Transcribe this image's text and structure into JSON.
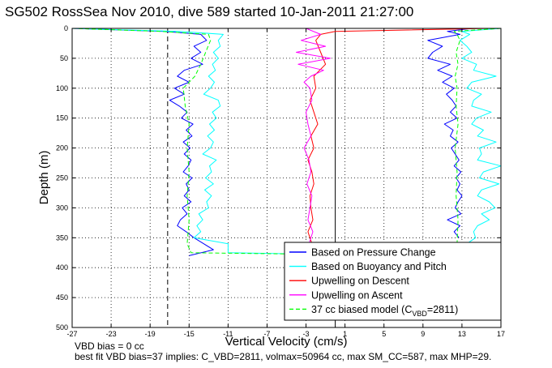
{
  "chart_data": {
    "type": "line",
    "title": "SG502 RossSea Nov 2010, dive 589 started 10-Jan-2011 21:27:00",
    "xlabel": "Vertical Velocity (cm/s)",
    "ylabel": "Depth (m)",
    "xlim": [
      -27,
      17
    ],
    "ylim": [
      500,
      0
    ],
    "y_reversed": true,
    "grid": true,
    "x_ticks": [
      "-27",
      "-23",
      "-19",
      "-15",
      "-11",
      "-7",
      "-3",
      "1",
      "5",
      "9",
      "13",
      "17"
    ],
    "y_ticks": [
      "0",
      "50",
      "100",
      "150",
      "200",
      "250",
      "300",
      "350",
      "400",
      "450",
      "500"
    ],
    "legend_position": "bottom-right",
    "legend": [
      {
        "label": "Based on Pressure Change",
        "color": "#0000ff",
        "dash": false
      },
      {
        "label": "Based on Buoyancy and Pitch",
        "color": "#00ffff",
        "dash": false
      },
      {
        "label": "Upwelling on Descent",
        "color": "#ff0000",
        "dash": false
      },
      {
        "label": "Upwelling on Ascent",
        "color": "#ff00ff",
        "dash": false
      },
      {
        "label": "37 cc biased model (C",
        "sub": "VBD",
        "suffix": "=2811)",
        "color": "#00ff00",
        "dash": true
      }
    ],
    "reference_lines": [
      {
        "x": -17.2,
        "style": "dashed",
        "color": "#000000"
      },
      {
        "x": 0.0,
        "style": "solid",
        "color": "#000000"
      }
    ],
    "series": [
      {
        "name": "Based on Pressure Change",
        "color": "#0000ff",
        "profiles": [
          {
            "depth": [
              0,
              5,
              10,
              20,
              30,
              40,
              50,
              60,
              70,
              80,
              90,
              100,
              110,
              120,
              130,
              140,
              150,
              160,
              170,
              180,
              190,
              200,
              210,
              220,
              230,
              240,
              250,
              260,
              270,
              280,
              290,
              300,
              310,
              320,
              330,
              340,
              350,
              360,
              370,
              380
            ],
            "velocity": [
              -27,
              -17.5,
              -13.8,
              -13.2,
              -14.5,
              -13.8,
              -14.8,
              -13.6,
              -15.5,
              -16.2,
              -15.0,
              -16.5,
              -15.5,
              -17.0,
              -16.0,
              -15.2,
              -15.8,
              -14.6,
              -15.3,
              -14.7,
              -15.6,
              -14.9,
              -15.5,
              -14.8,
              -15.1,
              -15.6,
              -14.7,
              -15.3,
              -15.0,
              -15.5,
              -14.8,
              -15.7,
              -15.2,
              -15.9,
              -16.2,
              -15.3,
              -14.5,
              -13.5,
              -12.5,
              -15.0
            ]
          },
          {
            "depth": [
              0,
              5,
              10,
              20,
              30,
              40,
              50,
              60,
              70,
              80,
              90,
              100,
              110,
              120,
              130,
              140,
              150,
              160,
              170,
              180,
              190,
              200,
              210,
              220,
              230,
              240,
              250,
              260,
              270,
              280,
              290,
              300,
              310,
              320,
              330,
              340,
              350
            ],
            "velocity": [
              14,
              11.5,
              12.8,
              9.5,
              11.0,
              10.0,
              9.5,
              11.8,
              10.5,
              12.0,
              11.0,
              12.2,
              11.4,
              12.0,
              12.4,
              11.8,
              12.5,
              11.2,
              12.1,
              11.8,
              12.6,
              11.9,
              12.3,
              12.7,
              12.2,
              12.9,
              12.4,
              12.8,
              12.5,
              13.0,
              12.6,
              12.3,
              12.9,
              11.5,
              12.8,
              12.2,
              12.7
            ]
          }
        ]
      },
      {
        "name": "Based on Buoyancy and Pitch",
        "color": "#00ffff",
        "profiles": [
          {
            "depth": [
              0,
              5,
              10,
              20,
              30,
              40,
              50,
              60,
              70,
              80,
              90,
              100,
              110,
              120,
              130,
              140,
              150,
              160,
              170,
              180,
              190,
              200,
              210,
              220,
              230,
              240,
              250,
              260,
              270,
              280,
              290,
              300,
              310,
              320,
              330,
              340,
              350,
              360,
              370,
              375,
              378,
              380
            ],
            "velocity": [
              -27,
              -16.0,
              -11.5,
              -12.0,
              -11.8,
              -12.5,
              -12.0,
              -12.6,
              -12.3,
              -13.0,
              -12.4,
              -12.8,
              -13.5,
              -12.0,
              -11.8,
              -12.6,
              -12.2,
              -12.9,
              -12.4,
              -13.1,
              -12.5,
              -12.8,
              -13.6,
              -12.2,
              -12.9,
              -12.7,
              -13.3,
              -12.5,
              -13.4,
              -12.7,
              -13.2,
              -13.0,
              -14.0,
              -13.6,
              -14.2,
              -13.8,
              -14.5,
              -11.0,
              -11.0,
              -11.0,
              0,
              0
            ]
          },
          {
            "depth": [
              0,
              5,
              10,
              20,
              30,
              40,
              50,
              60,
              70,
              80,
              90,
              100,
              110,
              120,
              130,
              140,
              150,
              160,
              170,
              180,
              190,
              200,
              210,
              220,
              230,
              240,
              250,
              260,
              270,
              280,
              290,
              300,
              310,
              320,
              330,
              340,
              350,
              360,
              370,
              380
            ],
            "velocity": [
              17,
              13.0,
              13.8,
              12.8,
              13.5,
              14.0,
              13.0,
              14.5,
              14.2,
              16.5,
              14.0,
              13.5,
              15.0,
              14.2,
              14.0,
              16.0,
              14.5,
              14.0,
              15.2,
              14.6,
              16.5,
              14.8,
              15.0,
              14.6,
              17.0,
              15.2,
              14.8,
              16.8,
              15.0,
              14.6,
              15.8,
              16.4,
              15.0,
              15.8,
              14.6,
              14.2,
              14.4,
              13.5,
              13.0,
              14.0
            ]
          }
        ]
      },
      {
        "name": "Upwelling on Descent",
        "color": "#ff0000",
        "profiles": [
          {
            "depth": [
              0,
              5,
              10,
              20,
              40,
              60,
              80,
              100,
              120,
              140,
              160,
              180,
              200,
              220,
              240,
              260,
              280,
              300,
              320,
              340,
              360,
              380
            ],
            "velocity": [
              16,
              0.0,
              -1.5,
              -2.0,
              -1.5,
              -1.0,
              -2.2,
              -2.0,
              -2.6,
              -2.2,
              -1.8,
              -2.5,
              -2.2,
              -2.8,
              -2.4,
              -2.2,
              -2.6,
              -2.5,
              -2.3,
              -2.8,
              -2.4,
              -2.6
            ]
          }
        ]
      },
      {
        "name": "Upwelling on Ascent",
        "color": "#ff00ff",
        "profiles": [
          {
            "depth": [
              0,
              10,
              20,
              30,
              40,
              50,
              60,
              70,
              80,
              90,
              100,
              120,
              140,
              160,
              180,
              200,
              220,
              240,
              260,
              280,
              300,
              320,
              340,
              360,
              380
            ],
            "velocity": [
              -3.0,
              -1.5,
              -3.5,
              -1.0,
              -4.0,
              -0.5,
              -3.8,
              -1.2,
              -2.5,
              -3.2,
              -2.6,
              -2.4,
              -3.0,
              -2.8,
              -2.5,
              -3.2,
              -2.7,
              -2.5,
              -2.9,
              -2.4,
              -2.6,
              -2.8,
              -2.3,
              -2.7,
              -2.5
            ]
          }
        ]
      },
      {
        "name": "37 cc biased model",
        "color": "#00ff00",
        "dashed": true,
        "profiles": [
          {
            "depth": [
              0,
              5,
              10,
              20,
              40,
              60,
              80,
              100,
              130,
              160,
              200,
              240,
              280,
              320,
              360,
              375,
              378,
              380
            ],
            "velocity": [
              -27,
              -18.0,
              -13.0,
              -12.8,
              -13.3,
              -13.8,
              -14.4,
              -15.6,
              -15.4,
              -15.0,
              -15.2,
              -15.0,
              -15.2,
              -15.0,
              -15.2,
              -14.8,
              0,
              0
            ]
          },
          {
            "depth": [
              0,
              5,
              10,
              20,
              40,
              60,
              80,
              100,
              130,
              160,
              200,
              240,
              280,
              320,
              360
            ],
            "velocity": [
              17,
              12.2,
              12.5,
              12.8,
              12.4,
              12.6,
              12.3,
              12.5,
              12.4,
              12.6,
              12.3,
              12.5,
              12.4,
              12.6,
              12.5
            ]
          }
        ]
      }
    ]
  },
  "footnotes": {
    "line1": "VBD bias = 0 cc",
    "line2": "best fit VBD bias=37 implies: C_VBD=2811, volmax=50964 cc, max SM_CC=587, max MHP=29."
  }
}
